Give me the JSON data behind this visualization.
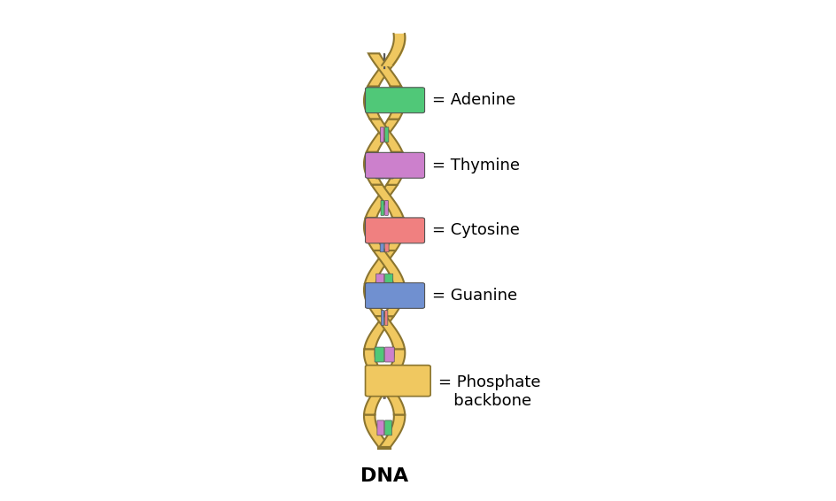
{
  "background_color": "#ffffff",
  "dna_label": "DNA",
  "dna_label_fontsize": 16,
  "backbone_color": "#F0C860",
  "backbone_edge_color": "#8B7530",
  "adenine_color": "#50C878",
  "thymine_color": "#CC80CC",
  "cytosine_color": "#F08080",
  "guanine_color": "#7090D0",
  "legend_items": [
    {
      "label": "= Adenine",
      "color": "#50C878"
    },
    {
      "label": "= Thymine",
      "color": "#CC80CC"
    },
    {
      "label": "= Cytosine",
      "color": "#F08080"
    },
    {
      "label": "= Guanine",
      "color": "#7090D0"
    }
  ],
  "phosphate_color": "#F0C860",
  "phosphate_edge_color": "#8B7530",
  "legend_fontsize": 13,
  "base_pair_sequence": [
    [
      "thymine",
      "adenine"
    ],
    [
      "guanine",
      "cytosine"
    ],
    [
      "adenine",
      "thymine"
    ],
    [
      "guanine",
      "cytosine"
    ],
    [
      "thymine",
      "adenine"
    ],
    [
      "guanine",
      "cytosine"
    ],
    [
      "adenine",
      "thymine"
    ],
    [
      "guanine",
      "cytosine"
    ],
    [
      "thymine",
      "adenine"
    ],
    [
      "guanine",
      "cytosine"
    ],
    [
      "adenine",
      "thymine"
    ]
  ]
}
